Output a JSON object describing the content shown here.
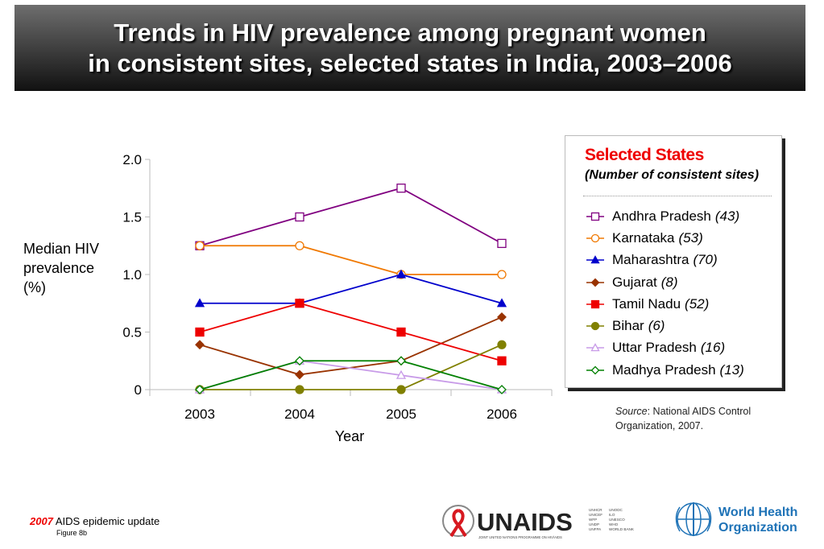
{
  "header": {
    "title_line1": "Trends in HIV prevalence among pregnant women",
    "title_line2": "in consistent sites, selected states in India, 2003–2006"
  },
  "chart_data": {
    "type": "line",
    "x": [
      "2003",
      "2004",
      "2005",
      "2006"
    ],
    "xlabel": "Year",
    "ylabel": "Median HIV prevalence (%)",
    "ylabel_lines": [
      "Median HIV",
      "prevalence",
      "(%)"
    ],
    "ylim": [
      0,
      2.0
    ],
    "y_ticks": [
      {
        "value": 0,
        "label": "0"
      },
      {
        "value": 0.5,
        "label": "0.5"
      },
      {
        "value": 1.0,
        "label": "1.0"
      },
      {
        "value": 1.5,
        "label": "1.5"
      },
      {
        "value": 2.0,
        "label": "2.0"
      }
    ],
    "grid": false,
    "legend_position": "right",
    "series": [
      {
        "name": "Andhra Pradesh",
        "sites": "(43)",
        "color": "#800080",
        "marker": "square-open",
        "values": [
          1.25,
          1.5,
          1.75,
          1.27
        ]
      },
      {
        "name": "Karnataka",
        "sites": "(53)",
        "color": "#f07800",
        "marker": "circle-open",
        "values": [
          1.25,
          1.25,
          1.0,
          1.0
        ]
      },
      {
        "name": "Maharashtra",
        "sites": "(70)",
        "color": "#0000cc",
        "marker": "triangle-filled",
        "values": [
          0.75,
          0.75,
          1.0,
          0.75
        ]
      },
      {
        "name": "Gujarat",
        "sites": "(8)",
        "color": "#993300",
        "marker": "diamond-filled",
        "values": [
          0.39,
          0.13,
          0.25,
          0.63
        ]
      },
      {
        "name": "Tamil Nadu",
        "sites": "(52)",
        "color": "#ee0000",
        "marker": "square-filled",
        "values": [
          0.5,
          0.75,
          0.5,
          0.25
        ]
      },
      {
        "name": "Bihar",
        "sites": "(6)",
        "color": "#808000",
        "marker": "circle-filled",
        "values": [
          0.0,
          0.0,
          0.0,
          0.39
        ]
      },
      {
        "name": "Uttar Pradesh",
        "sites": "(16)",
        "color": "#c89be8",
        "marker": "triangle-open",
        "values": [
          0.0,
          0.25,
          0.125,
          0.0
        ]
      },
      {
        "name": "Madhya Pradesh",
        "sites": "(13)",
        "color": "#008000",
        "marker": "diamond-open",
        "values": [
          0.0,
          0.25,
          0.25,
          0.0
        ]
      }
    ]
  },
  "legend": {
    "title": "Selected States",
    "subtitle": "(Number of consistent sites)"
  },
  "source": {
    "label": "Source",
    "text": ": National AIDS Control",
    "text2": "Organization, 2007."
  },
  "footer": {
    "year": "2007",
    "text": "AIDS epidemic update",
    "figure": "Figure 8b"
  },
  "logos": {
    "unaids_name": "UNAIDS",
    "unaids_tagline": "JOINT UNITED NATIONS PROGRAMME ON HIV/AIDS",
    "unaids_cosponsors_col1": [
      "UNHCR",
      "UNICEF",
      "WFP",
      "UNDP",
      "UNFPA"
    ],
    "unaids_cosponsors_col2": [
      "UNODC",
      "ILO",
      "UNESCO",
      "WHO",
      "WORLD BANK"
    ],
    "who_line1": "World Health",
    "who_line2": "Organization",
    "colors": {
      "unaids_red": "#d71920",
      "who_blue": "#1f73b7"
    }
  }
}
